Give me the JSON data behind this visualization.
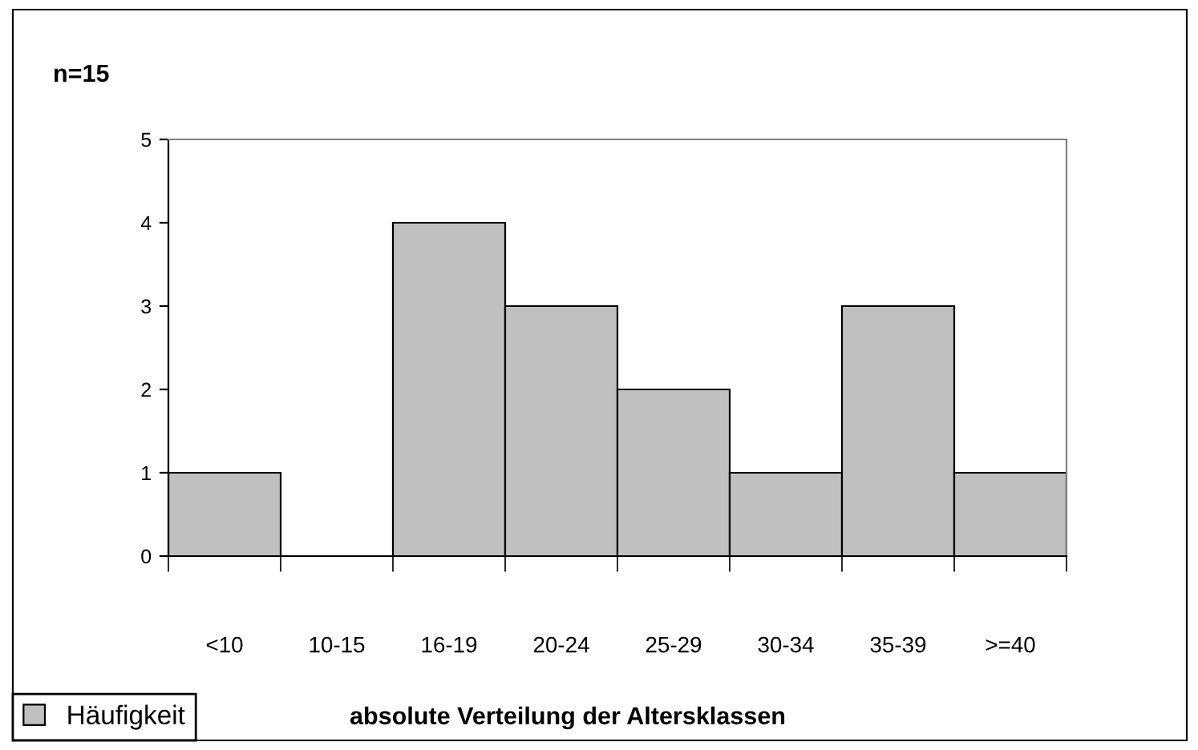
{
  "chart_data": {
    "type": "bar",
    "title": "n=15",
    "xlabel": "absolute Verteilung der Altersklassen",
    "categories": [
      "<10",
      "10-15",
      "16-19",
      "20-24",
      "25-29",
      "30-34",
      "35-39",
      ">=40"
    ],
    "series": [
      {
        "name": "Häufigkeit",
        "color": "#c0c0c0",
        "values": [
          1,
          0,
          4,
          3,
          2,
          1,
          3,
          1
        ]
      }
    ],
    "ylim": [
      0,
      5
    ],
    "yticks": [
      0,
      1,
      2,
      3,
      4,
      5
    ],
    "grid": false,
    "legend": "bottom left"
  }
}
